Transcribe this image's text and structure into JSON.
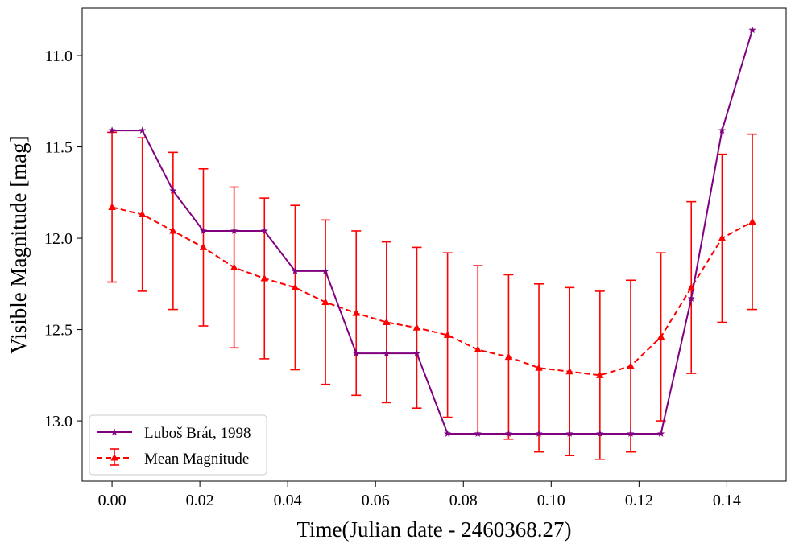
{
  "chart_data": {
    "type": "line",
    "xlabel": "Time(Julian date - 2460368.27)",
    "ylabel": "Visible Magnitude [mag]",
    "xlim": [
      -0.0068,
      0.1535
    ],
    "ylim": [
      13.33,
      10.74
    ],
    "y_inverted": true,
    "x_ticks": [
      "0.00",
      "0.02",
      "0.04",
      "0.06",
      "0.08",
      "0.10",
      "0.12",
      "0.14"
    ],
    "y_ticks": [
      "11.0",
      "11.5",
      "12.0",
      "12.5",
      "13.0"
    ],
    "grid": false,
    "legend_position": "lower-left",
    "series": [
      {
        "name": "Luboš Brát, 1998",
        "color": "#800080",
        "marker": "star",
        "linestyle": "solid",
        "x": [
          0.0,
          0.0069,
          0.0139,
          0.0208,
          0.0278,
          0.0347,
          0.0417,
          0.0486,
          0.0556,
          0.0625,
          0.0694,
          0.0764,
          0.0833,
          0.0903,
          0.0972,
          0.1042,
          0.1111,
          0.1181,
          0.125,
          0.1319,
          0.1389,
          0.1458
        ],
        "y": [
          11.41,
          11.41,
          11.74,
          11.96,
          11.96,
          11.96,
          12.18,
          12.18,
          12.63,
          12.63,
          12.63,
          13.07,
          13.07,
          13.07,
          13.07,
          13.07,
          13.07,
          13.07,
          13.07,
          12.33,
          11.41,
          10.86
        ]
      },
      {
        "name": "Mean Magnitude",
        "color": "#ff0000",
        "marker": "triangle",
        "linestyle": "dashed",
        "x": [
          0.0,
          0.0069,
          0.0139,
          0.0208,
          0.0278,
          0.0347,
          0.0417,
          0.0486,
          0.0556,
          0.0625,
          0.0694,
          0.0764,
          0.0833,
          0.0903,
          0.0972,
          0.1042,
          0.1111,
          0.1181,
          0.125,
          0.1319,
          0.1389,
          0.1458
        ],
        "y": [
          11.83,
          11.87,
          11.96,
          12.05,
          12.16,
          12.22,
          12.27,
          12.35,
          12.41,
          12.46,
          12.49,
          12.53,
          12.61,
          12.65,
          12.71,
          12.73,
          12.75,
          12.7,
          12.54,
          12.27,
          12.0,
          11.91
        ],
        "yerr": [
          0.41,
          0.42,
          0.43,
          0.43,
          0.44,
          0.44,
          0.45,
          0.45,
          0.45,
          0.44,
          0.44,
          0.45,
          0.46,
          0.45,
          0.46,
          0.46,
          0.46,
          0.47,
          0.46,
          0.47,
          0.46,
          0.48
        ]
      }
    ]
  }
}
